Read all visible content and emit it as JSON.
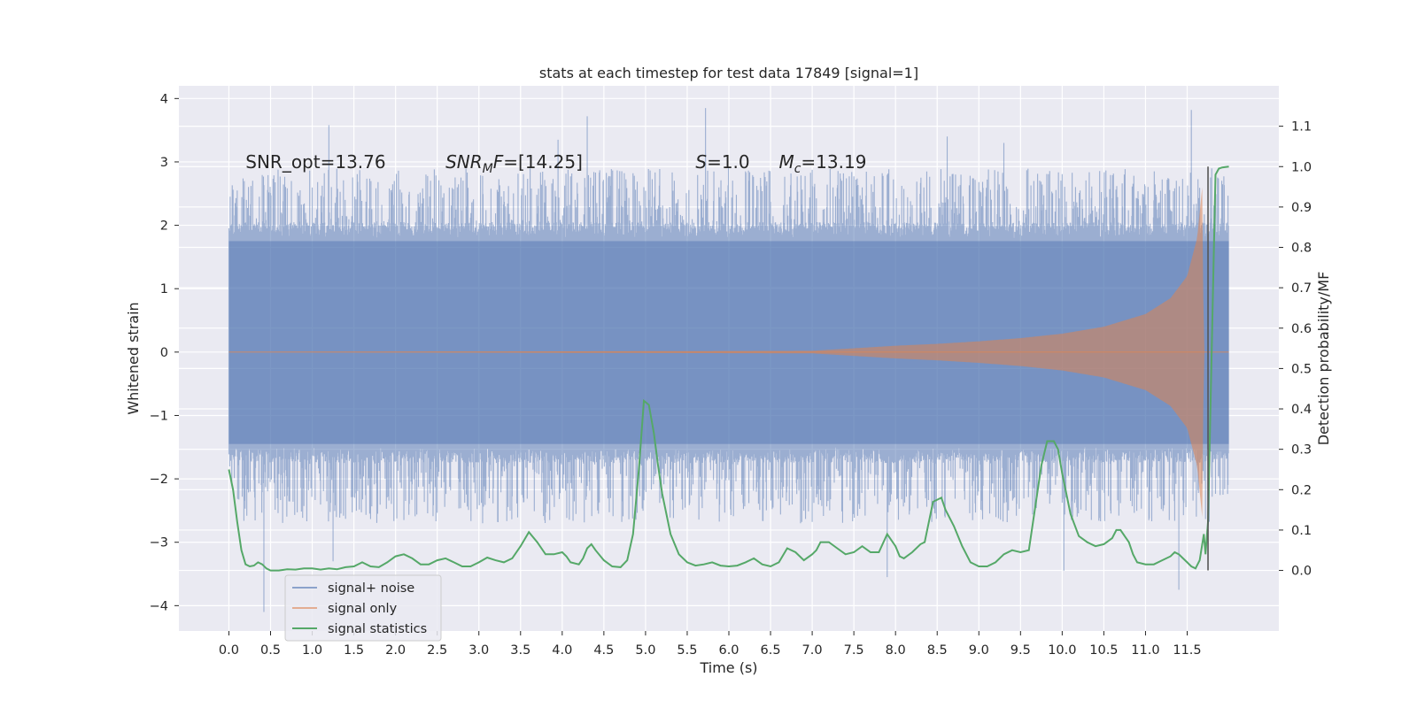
{
  "chart_data": {
    "type": "line",
    "title": "stats at each timestep for test data 17849 [signal=1]",
    "xlabel": "Time (s)",
    "ylabel": "Whitened strain",
    "y2label": "Detection probability/MF",
    "xlim": [
      -0.6,
      12.6
    ],
    "ylim": [
      -4.4,
      4.2
    ],
    "y2lim": [
      -0.15,
      1.2
    ],
    "x_ticks": [
      0.0,
      0.5,
      1.0,
      1.5,
      2.0,
      2.5,
      3.0,
      3.5,
      4.0,
      4.5,
      5.0,
      5.5,
      6.0,
      6.5,
      7.0,
      7.5,
      8.0,
      8.5,
      9.0,
      9.5,
      10.0,
      10.5,
      11.0,
      11.5
    ],
    "x_tick_labels": [
      "0.0",
      "0.5",
      "1.0",
      "1.5",
      "2.0",
      "2.5",
      "3.0",
      "3.5",
      "4.0",
      "4.5",
      "5.0",
      "5.5",
      "6.0",
      "6.5",
      "7.0",
      "7.5",
      "8.0",
      "8.5",
      "9.0",
      "9.5",
      "10.0",
      "10.5",
      "11.0",
      "11.5"
    ],
    "y_ticks": [
      -4,
      -3,
      -2,
      -1,
      0,
      1,
      2,
      3,
      4
    ],
    "y_tick_labels": [
      "−4",
      "−3",
      "−2",
      "−1",
      "0",
      "1",
      "2",
      "3",
      "4"
    ],
    "y2_ticks": [
      0.0,
      0.1,
      0.2,
      0.3,
      0.4,
      0.5,
      0.6,
      0.7,
      0.8,
      0.9,
      1.0,
      1.1
    ],
    "y2_tick_labels": [
      "0.0",
      "0.1",
      "0.2",
      "0.3",
      "0.4",
      "0.5",
      "0.6",
      "0.7",
      "0.8",
      "0.9",
      "1.0",
      "1.1"
    ],
    "annotations": [
      {
        "label": "SNR_opt=13.76",
        "x": 0.2,
        "y": 3.0
      },
      {
        "label": "SNR_MF=[14.25]",
        "x": 2.6,
        "y": 3.0
      },
      {
        "label": "S=1.0",
        "x": 5.6,
        "y": 3.0
      },
      {
        "label": "M_c=13.19",
        "x": 6.6,
        "y": 3.0
      }
    ],
    "vline": {
      "x": 11.75,
      "y2_range": [
        0.0,
        1.0
      ],
      "color": "#555555"
    },
    "series": [
      {
        "name": "signal+ noise",
        "color": "#4c72b0",
        "axis": "left",
        "time_range": [
          0.0,
          12.0
        ],
        "envelope": {
          "upper_typical": 1.8,
          "lower_typical": -1.5,
          "max": 3.85,
          "min": -4.1
        },
        "extreme_spikes": [
          {
            "x": 0.42,
            "y": -4.1
          },
          {
            "x": 1.2,
            "y": 3.58
          },
          {
            "x": 1.25,
            "y": -3.3
          },
          {
            "x": 4.3,
            "y": 3.72
          },
          {
            "x": 5.72,
            "y": 3.85
          },
          {
            "x": 7.9,
            "y": -3.55
          },
          {
            "x": 10.02,
            "y": -3.45
          },
          {
            "x": 11.4,
            "y": -3.75
          },
          {
            "x": 11.55,
            "y": 3.82
          },
          {
            "x": 8.62,
            "y": 3.4
          },
          {
            "x": 3.95,
            "y": 3.35
          },
          {
            "x": 9.3,
            "y": 3.3
          }
        ]
      },
      {
        "name": "signal only",
        "color": "#dd8452",
        "axis": "left",
        "description": "chirp",
        "time_range": [
          0.0,
          12.0
        ],
        "amplitude_points": [
          [
            0.0,
            0.0
          ],
          [
            7.0,
            0.02
          ],
          [
            7.5,
            0.06
          ],
          [
            8.0,
            0.1
          ],
          [
            8.5,
            0.13
          ],
          [
            9.0,
            0.17
          ],
          [
            9.5,
            0.22
          ],
          [
            10.0,
            0.29
          ],
          [
            10.5,
            0.4
          ],
          [
            11.0,
            0.6
          ],
          [
            11.3,
            0.85
          ],
          [
            11.5,
            1.2
          ],
          [
            11.62,
            1.8
          ],
          [
            11.68,
            2.6
          ],
          [
            11.7,
            0.0
          ],
          [
            12.0,
            0.0
          ]
        ]
      },
      {
        "name": "signal statistics",
        "color": "#55a868",
        "axis": "right",
        "points": [
          [
            0.0,
            0.25
          ],
          [
            0.05,
            0.2
          ],
          [
            0.1,
            0.12
          ],
          [
            0.15,
            0.05
          ],
          [
            0.2,
            0.015
          ],
          [
            0.25,
            0.01
          ],
          [
            0.3,
            0.012
          ],
          [
            0.35,
            0.02
          ],
          [
            0.4,
            0.015
          ],
          [
            0.45,
            0.005
          ],
          [
            0.5,
            0.0
          ],
          [
            0.6,
            0.0
          ],
          [
            0.7,
            0.003
          ],
          [
            0.8,
            0.002
          ],
          [
            0.9,
            0.005
          ],
          [
            1.0,
            0.005
          ],
          [
            1.1,
            0.002
          ],
          [
            1.2,
            0.005
          ],
          [
            1.3,
            0.003
          ],
          [
            1.4,
            0.008
          ],
          [
            1.5,
            0.01
          ],
          [
            1.6,
            0.02
          ],
          [
            1.7,
            0.01
          ],
          [
            1.8,
            0.008
          ],
          [
            1.9,
            0.02
          ],
          [
            2.0,
            0.035
          ],
          [
            2.1,
            0.04
          ],
          [
            2.2,
            0.03
          ],
          [
            2.3,
            0.015
          ],
          [
            2.4,
            0.015
          ],
          [
            2.5,
            0.025
          ],
          [
            2.6,
            0.03
          ],
          [
            2.7,
            0.02
          ],
          [
            2.8,
            0.01
          ],
          [
            2.9,
            0.01
          ],
          [
            3.0,
            0.02
          ],
          [
            3.1,
            0.032
          ],
          [
            3.2,
            0.025
          ],
          [
            3.3,
            0.02
          ],
          [
            3.4,
            0.03
          ],
          [
            3.5,
            0.06
          ],
          [
            3.6,
            0.095
          ],
          [
            3.7,
            0.07
          ],
          [
            3.8,
            0.04
          ],
          [
            3.9,
            0.04
          ],
          [
            4.0,
            0.045
          ],
          [
            4.05,
            0.035
          ],
          [
            4.1,
            0.02
          ],
          [
            4.2,
            0.015
          ],
          [
            4.25,
            0.03
          ],
          [
            4.3,
            0.055
          ],
          [
            4.35,
            0.065
          ],
          [
            4.4,
            0.05
          ],
          [
            4.5,
            0.025
          ],
          [
            4.6,
            0.01
          ],
          [
            4.7,
            0.008
          ],
          [
            4.78,
            0.025
          ],
          [
            4.85,
            0.09
          ],
          [
            4.92,
            0.25
          ],
          [
            4.98,
            0.42
          ],
          [
            5.04,
            0.41
          ],
          [
            5.1,
            0.34
          ],
          [
            5.15,
            0.26
          ],
          [
            5.2,
            0.19
          ],
          [
            5.3,
            0.09
          ],
          [
            5.4,
            0.04
          ],
          [
            5.5,
            0.02
          ],
          [
            5.6,
            0.012
          ],
          [
            5.7,
            0.015
          ],
          [
            5.8,
            0.02
          ],
          [
            5.9,
            0.012
          ],
          [
            6.0,
            0.01
          ],
          [
            6.1,
            0.012
          ],
          [
            6.2,
            0.02
          ],
          [
            6.3,
            0.03
          ],
          [
            6.4,
            0.015
          ],
          [
            6.5,
            0.01
          ],
          [
            6.6,
            0.02
          ],
          [
            6.7,
            0.055
          ],
          [
            6.8,
            0.045
          ],
          [
            6.9,
            0.025
          ],
          [
            7.0,
            0.04
          ],
          [
            7.05,
            0.05
          ],
          [
            7.1,
            0.07
          ],
          [
            7.2,
            0.07
          ],
          [
            7.3,
            0.055
          ],
          [
            7.4,
            0.04
          ],
          [
            7.5,
            0.045
          ],
          [
            7.6,
            0.06
          ],
          [
            7.7,
            0.045
          ],
          [
            7.8,
            0.045
          ],
          [
            7.9,
            0.09
          ],
          [
            8.0,
            0.06
          ],
          [
            8.05,
            0.035
          ],
          [
            8.1,
            0.03
          ],
          [
            8.2,
            0.045
          ],
          [
            8.3,
            0.065
          ],
          [
            8.35,
            0.07
          ],
          [
            8.45,
            0.17
          ],
          [
            8.55,
            0.18
          ],
          [
            8.6,
            0.15
          ],
          [
            8.7,
            0.11
          ],
          [
            8.8,
            0.06
          ],
          [
            8.9,
            0.02
          ],
          [
            9.0,
            0.01
          ],
          [
            9.1,
            0.01
          ],
          [
            9.2,
            0.02
          ],
          [
            9.3,
            0.04
          ],
          [
            9.4,
            0.05
          ],
          [
            9.5,
            0.045
          ],
          [
            9.6,
            0.05
          ],
          [
            9.65,
            0.12
          ],
          [
            9.75,
            0.26
          ],
          [
            9.82,
            0.32
          ],
          [
            9.9,
            0.32
          ],
          [
            9.95,
            0.3
          ],
          [
            10.0,
            0.24
          ],
          [
            10.1,
            0.14
          ],
          [
            10.2,
            0.085
          ],
          [
            10.3,
            0.07
          ],
          [
            10.4,
            0.06
          ],
          [
            10.5,
            0.065
          ],
          [
            10.6,
            0.08
          ],
          [
            10.65,
            0.1
          ],
          [
            10.7,
            0.1
          ],
          [
            10.8,
            0.07
          ],
          [
            10.85,
            0.04
          ],
          [
            10.9,
            0.02
          ],
          [
            11.0,
            0.015
          ],
          [
            11.1,
            0.015
          ],
          [
            11.2,
            0.025
          ],
          [
            11.3,
            0.035
          ],
          [
            11.35,
            0.045
          ],
          [
            11.4,
            0.04
          ],
          [
            11.45,
            0.03
          ],
          [
            11.5,
            0.02
          ],
          [
            11.55,
            0.01
          ],
          [
            11.6,
            0.005
          ],
          [
            11.65,
            0.025
          ],
          [
            11.7,
            0.09
          ],
          [
            11.72,
            0.04
          ],
          [
            11.75,
            0.12
          ],
          [
            11.8,
            0.6
          ],
          [
            11.84,
            0.98
          ],
          [
            11.88,
            0.995
          ],
          [
            11.92,
            0.998
          ],
          [
            12.0,
            1.0
          ]
        ]
      }
    ],
    "legend_position": "lower-left"
  }
}
